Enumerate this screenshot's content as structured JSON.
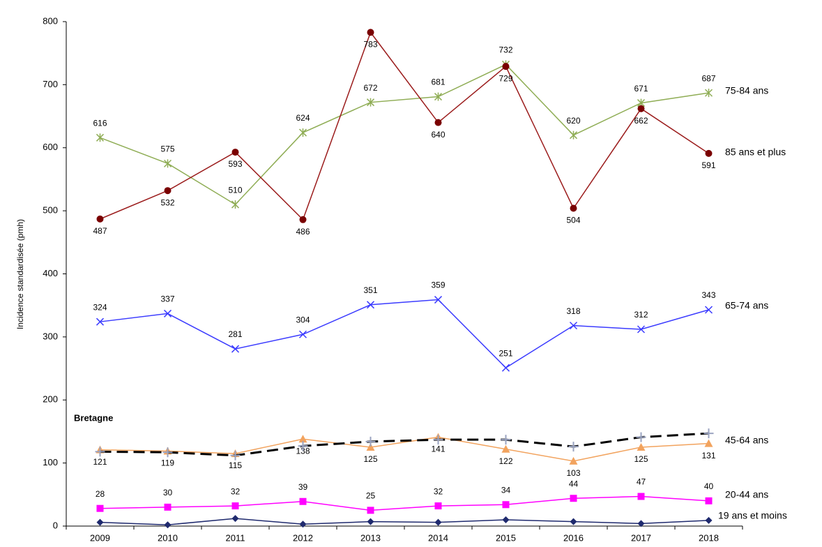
{
  "chart_data": {
    "type": "line",
    "y_label": "Incidence standardisée (pmh)",
    "categories": [
      "2009",
      "2010",
      "2011",
      "2012",
      "2013",
      "2014",
      "2015",
      "2016",
      "2017",
      "2018"
    ],
    "ylim": [
      0,
      800
    ],
    "yticks": [
      0,
      100,
      200,
      300,
      400,
      500,
      600,
      700,
      800
    ],
    "grid": false,
    "series": [
      {
        "name": "75-84 ans",
        "color": "#8fad55",
        "marker": "star",
        "values": [
          616,
          575,
          510,
          624,
          672,
          681,
          732,
          620,
          671,
          687
        ]
      },
      {
        "name": "85 ans et plus",
        "color": "#9b1c1c",
        "marker": "circle",
        "values": [
          487,
          532,
          593,
          486,
          783,
          640,
          729,
          504,
          662,
          591
        ]
      },
      {
        "name": "65-74 ans",
        "color": "#3b3bff",
        "marker": "x",
        "values": [
          324,
          337,
          281,
          304,
          351,
          359,
          251,
          318,
          312,
          343
        ]
      },
      {
        "name": "45-64 ans",
        "color": "#f2a35e",
        "marker": "triangle",
        "values": [
          121,
          119,
          115,
          138,
          125,
          141,
          122,
          103,
          125,
          131
        ]
      },
      {
        "name": "Bretagne",
        "color": "#000000",
        "marker": "plus",
        "dashed": true,
        "values": [
          118,
          117,
          112,
          127,
          134,
          137,
          137,
          126,
          141,
          147
        ]
      },
      {
        "name": "20-44 ans",
        "color": "#ff00ff",
        "marker": "square",
        "values": [
          28,
          30,
          32,
          39,
          25,
          32,
          34,
          44,
          47,
          40
        ]
      },
      {
        "name": "19 ans et moins",
        "color": "#1f2a6e",
        "marker": "diamond",
        "values": [
          6,
          2,
          12,
          3,
          7,
          6,
          10,
          7,
          4,
          9
        ]
      }
    ]
  }
}
